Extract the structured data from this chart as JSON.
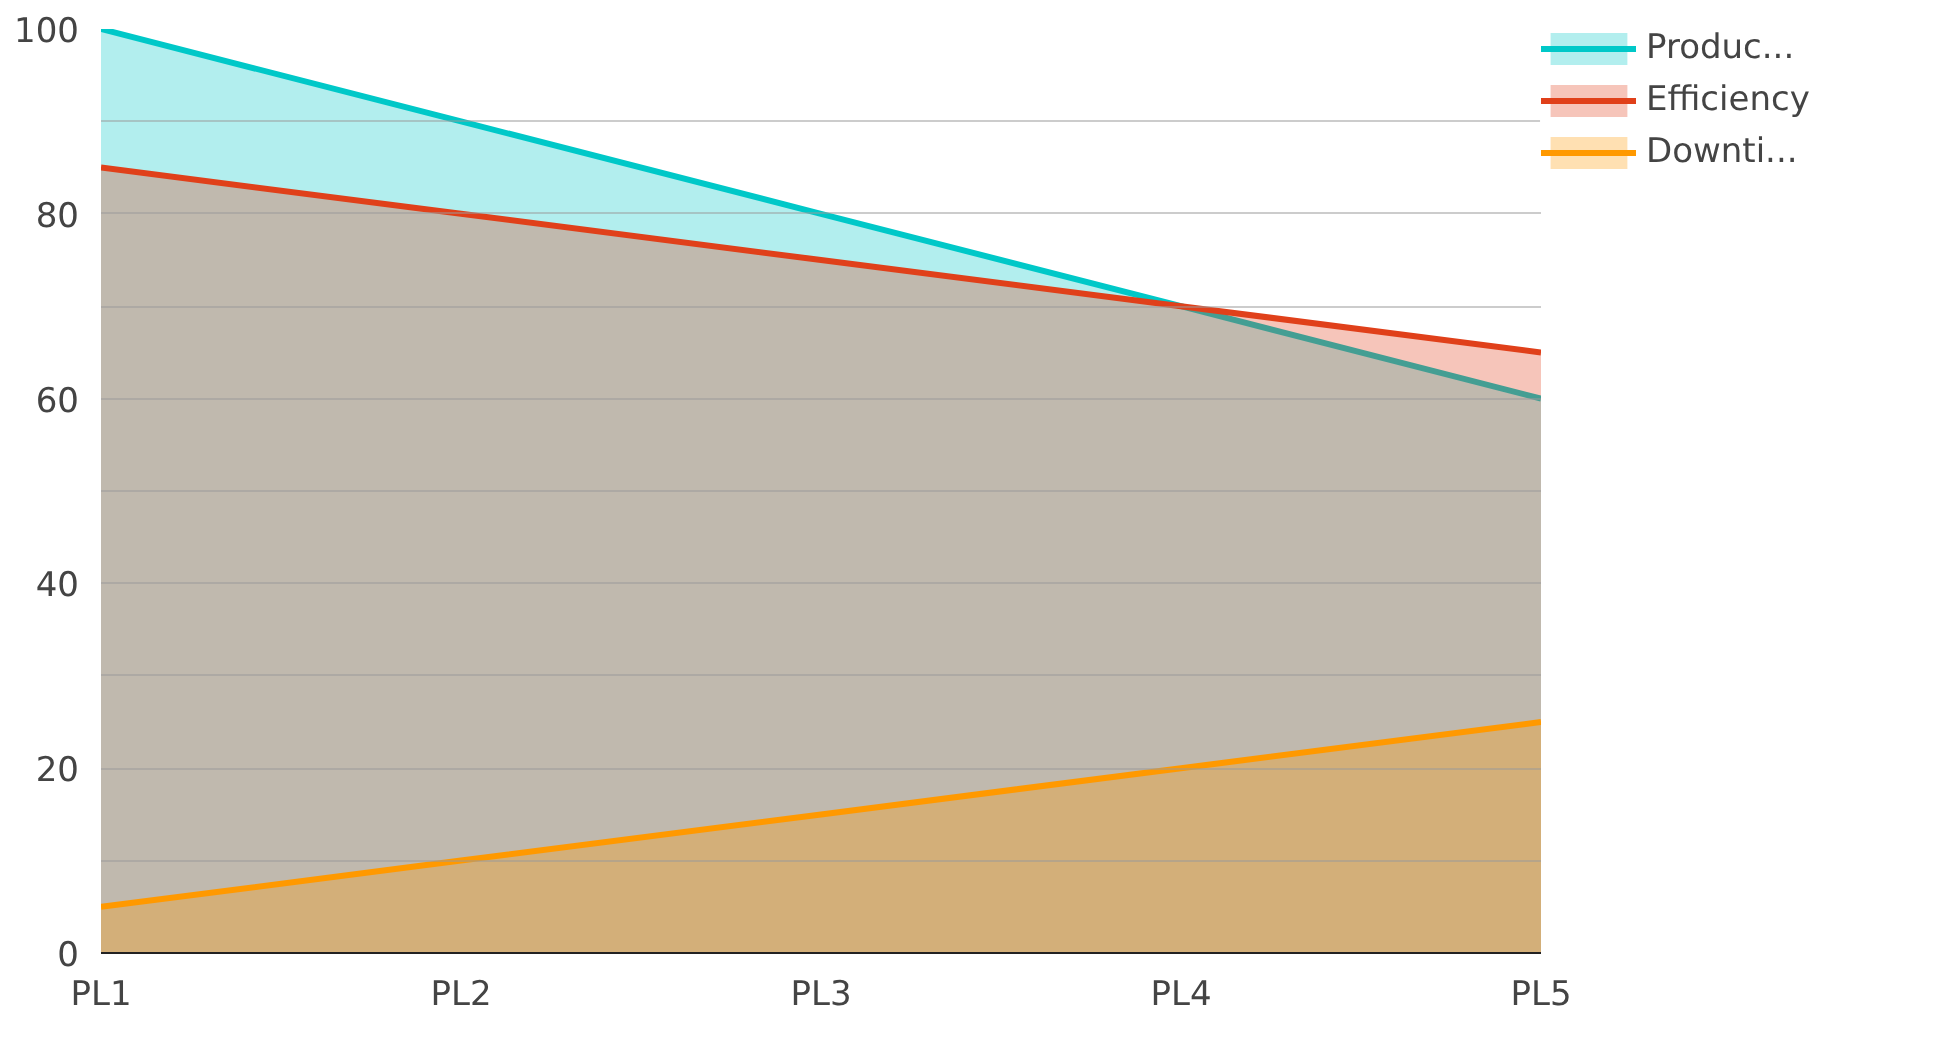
{
  "chart_data": {
    "type": "area",
    "categories": [
      "PL1",
      "PL2",
      "PL3",
      "PL4",
      "PL5"
    ],
    "series": [
      {
        "name": "Produc...",
        "color": "#00c8c8",
        "values": [
          100,
          90,
          80,
          70,
          60
        ]
      },
      {
        "name": "Efficiency",
        "color": "#e0401a",
        "values": [
          85,
          80,
          75,
          70,
          65
        ]
      },
      {
        "name": "Downti...",
        "color": "#ff9900",
        "values": [
          5,
          10,
          15,
          20,
          25
        ]
      }
    ],
    "ylim": [
      0,
      100
    ],
    "yticks": [
      0,
      {
        "value": 10,
        "label": null
      },
      20,
      {
        "value": 30,
        "label": null
      },
      40,
      {
        "value": 50,
        "label": null
      },
      60,
      {
        "value": 70,
        "label": null
      },
      80,
      {
        "value": 90,
        "label": null
      },
      100
    ],
    "grid": "y",
    "legend": "right"
  }
}
